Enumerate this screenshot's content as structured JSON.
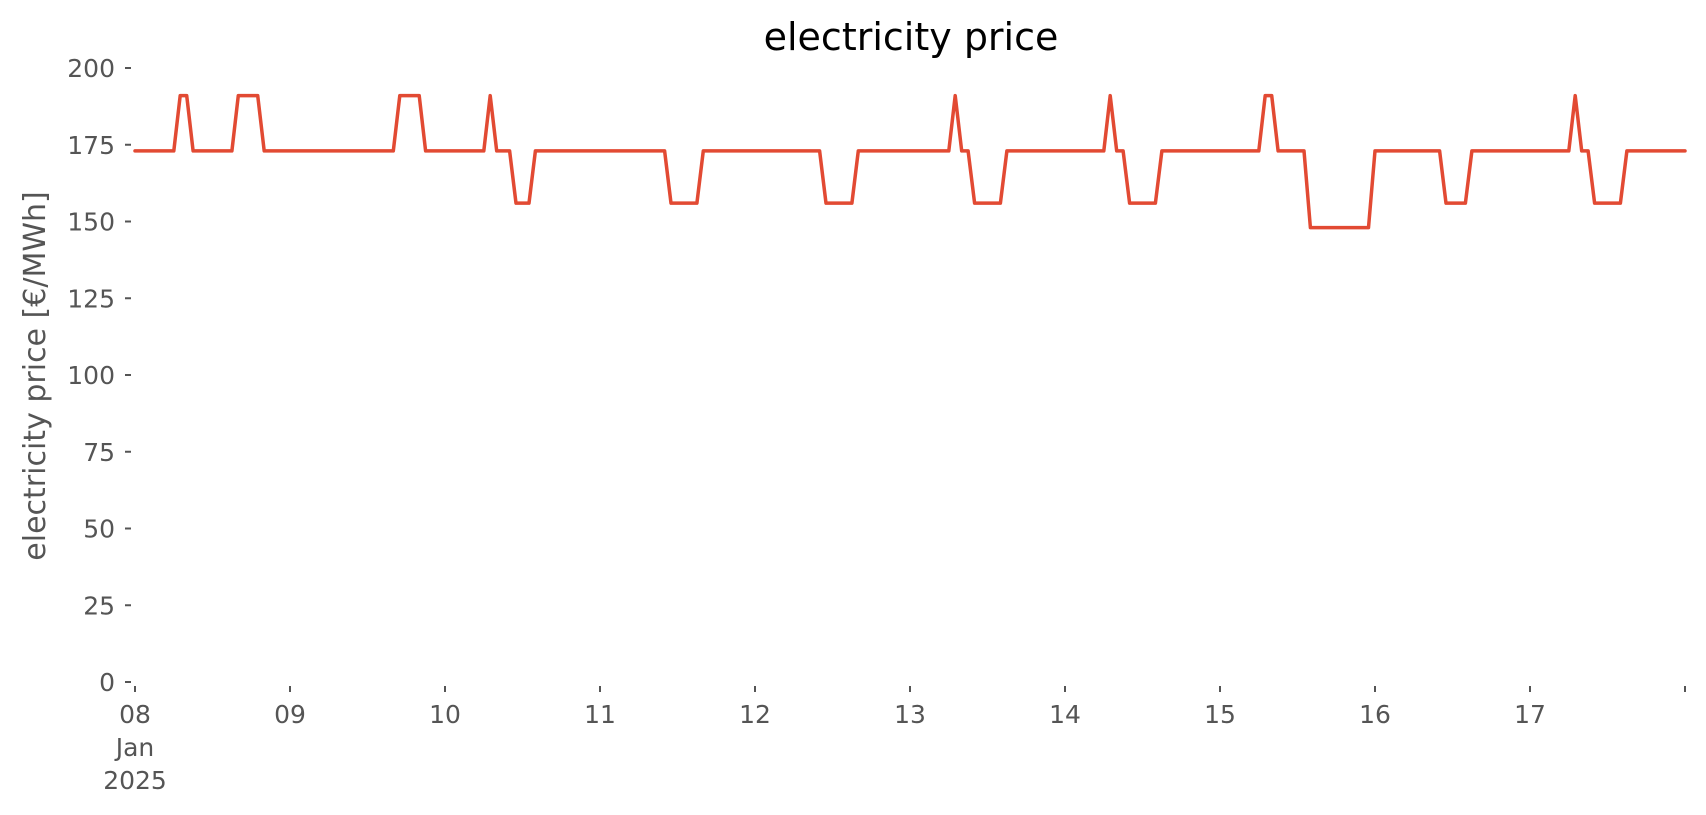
{
  "chart_data": {
    "type": "line",
    "title": "electricity price",
    "xlabel": "",
    "ylabel": "electricity price [€/MWh]",
    "x_axis": {
      "kind": "date",
      "range": [
        "2025-01-08T00:00",
        "2025-01-18T00:00"
      ],
      "ticks": [
        {
          "date": "2025-01-08",
          "label": [
            "08",
            "Jan",
            "2025"
          ]
        },
        {
          "date": "2025-01-09",
          "label": [
            "09"
          ]
        },
        {
          "date": "2025-01-10",
          "label": [
            "10"
          ]
        },
        {
          "date": "2025-01-11",
          "label": [
            "11"
          ]
        },
        {
          "date": "2025-01-12",
          "label": [
            "12"
          ]
        },
        {
          "date": "2025-01-13",
          "label": [
            "13"
          ]
        },
        {
          "date": "2025-01-14",
          "label": [
            "14"
          ]
        },
        {
          "date": "2025-01-15",
          "label": [
            "15"
          ]
        },
        {
          "date": "2025-01-16",
          "label": [
            "16"
          ]
        },
        {
          "date": "2025-01-17",
          "label": [
            "17"
          ]
        },
        {
          "date": "2025-01-18",
          "label": [
            ""
          ]
        }
      ]
    },
    "ylim": [
      0,
      200
    ],
    "yticks": [
      0,
      25,
      50,
      75,
      100,
      125,
      150,
      175,
      200
    ],
    "grid": false,
    "legend": "none",
    "series": [
      {
        "color": "#e24a33",
        "points": [
          [
            "2025-01-08T00:00",
            173
          ],
          [
            "2025-01-08T06:00",
            173
          ],
          [
            "2025-01-08T07:00",
            191
          ],
          [
            "2025-01-08T08:00",
            191
          ],
          [
            "2025-01-08T09:00",
            173
          ],
          [
            "2025-01-08T15:00",
            173
          ],
          [
            "2025-01-08T16:00",
            191
          ],
          [
            "2025-01-08T19:00",
            191
          ],
          [
            "2025-01-08T20:00",
            173
          ],
          [
            "2025-01-09T16:00",
            173
          ],
          [
            "2025-01-09T17:00",
            191
          ],
          [
            "2025-01-09T20:00",
            191
          ],
          [
            "2025-01-09T21:00",
            173
          ],
          [
            "2025-01-10T06:00",
            173
          ],
          [
            "2025-01-10T07:00",
            191
          ],
          [
            "2025-01-10T08:00",
            173
          ],
          [
            "2025-01-10T10:00",
            173
          ],
          [
            "2025-01-10T11:00",
            156
          ],
          [
            "2025-01-10T13:00",
            156
          ],
          [
            "2025-01-10T14:00",
            173
          ],
          [
            "2025-01-11T10:00",
            173
          ],
          [
            "2025-01-11T11:00",
            156
          ],
          [
            "2025-01-11T15:00",
            156
          ],
          [
            "2025-01-11T16:00",
            173
          ],
          [
            "2025-01-12T10:00",
            173
          ],
          [
            "2025-01-12T11:00",
            156
          ],
          [
            "2025-01-12T15:00",
            156
          ],
          [
            "2025-01-12T16:00",
            173
          ],
          [
            "2025-01-13T06:00",
            173
          ],
          [
            "2025-01-13T07:00",
            191
          ],
          [
            "2025-01-13T08:00",
            173
          ],
          [
            "2025-01-13T09:00",
            173
          ],
          [
            "2025-01-13T10:00",
            156
          ],
          [
            "2025-01-13T14:00",
            156
          ],
          [
            "2025-01-13T15:00",
            173
          ],
          [
            "2025-01-14T06:00",
            173
          ],
          [
            "2025-01-14T07:00",
            191
          ],
          [
            "2025-01-14T08:00",
            173
          ],
          [
            "2025-01-14T09:00",
            173
          ],
          [
            "2025-01-14T10:00",
            156
          ],
          [
            "2025-01-14T14:00",
            156
          ],
          [
            "2025-01-14T15:00",
            173
          ],
          [
            "2025-01-15T06:00",
            173
          ],
          [
            "2025-01-15T07:00",
            191
          ],
          [
            "2025-01-15T08:00",
            191
          ],
          [
            "2025-01-15T09:00",
            173
          ],
          [
            "2025-01-15T13:00",
            173
          ],
          [
            "2025-01-15T14:00",
            148
          ],
          [
            "2025-01-15T23:00",
            148
          ],
          [
            "2025-01-16T00:00",
            173
          ],
          [
            "2025-01-16T10:00",
            173
          ],
          [
            "2025-01-16T11:00",
            156
          ],
          [
            "2025-01-16T14:00",
            156
          ],
          [
            "2025-01-16T15:00",
            173
          ],
          [
            "2025-01-17T06:00",
            173
          ],
          [
            "2025-01-17T07:00",
            191
          ],
          [
            "2025-01-17T08:00",
            173
          ],
          [
            "2025-01-17T09:00",
            173
          ],
          [
            "2025-01-17T10:00",
            156
          ],
          [
            "2025-01-17T14:00",
            156
          ],
          [
            "2025-01-17T15:00",
            173
          ],
          [
            "2025-01-18T00:00",
            173
          ]
        ]
      }
    ]
  }
}
